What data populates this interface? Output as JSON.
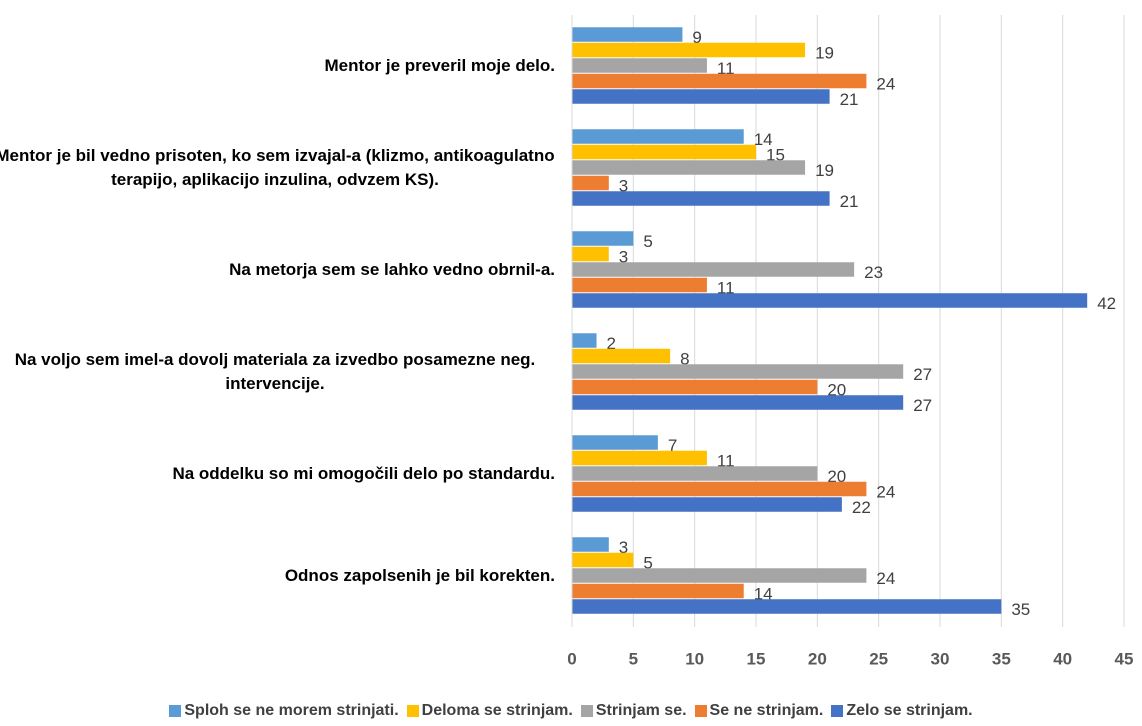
{
  "chart_data": {
    "type": "barh",
    "categories": [
      "Mentor je preveril moje delo.",
      "Mentor je bil vedno prisoten, ko sem izvajal-a (klizmo, antikoagulatno terapijo, aplikacijo inzulina, odvzem KS).",
      "Na metorja sem se lahko vedno obrnil-a.",
      "Na voljo sem imel-a dovolj materiala za izvedbo posamezne neg. intervencije.",
      "Na oddelku so mi omogočili delo po standardu.",
      "Odnos zapolsenih je bil korekten."
    ],
    "series": [
      {
        "name": "Sploh se ne morem strinjati.",
        "color": "#5b9bd5",
        "values": [
          9,
          14,
          5,
          2,
          7,
          3
        ]
      },
      {
        "name": "Deloma se strinjam.",
        "color": "#ffc000",
        "values": [
          19,
          15,
          3,
          8,
          11,
          5
        ]
      },
      {
        "name": "Strinjam se.",
        "color": "#a5a5a5",
        "values": [
          11,
          19,
          23,
          27,
          20,
          24
        ]
      },
      {
        "name": "Se ne strinjam.",
        "color": "#ed7d31",
        "values": [
          24,
          3,
          11,
          20,
          24,
          14
        ]
      },
      {
        "name": "Zelo se strinjam.",
        "color": "#4472c4",
        "values": [
          21,
          21,
          42,
          27,
          22,
          35
        ]
      }
    ],
    "xlim": [
      0,
      45
    ],
    "xticks": [
      0,
      5,
      10,
      15,
      20,
      25,
      30,
      35,
      40,
      45
    ],
    "grid": true,
    "legend": "bottom"
  }
}
